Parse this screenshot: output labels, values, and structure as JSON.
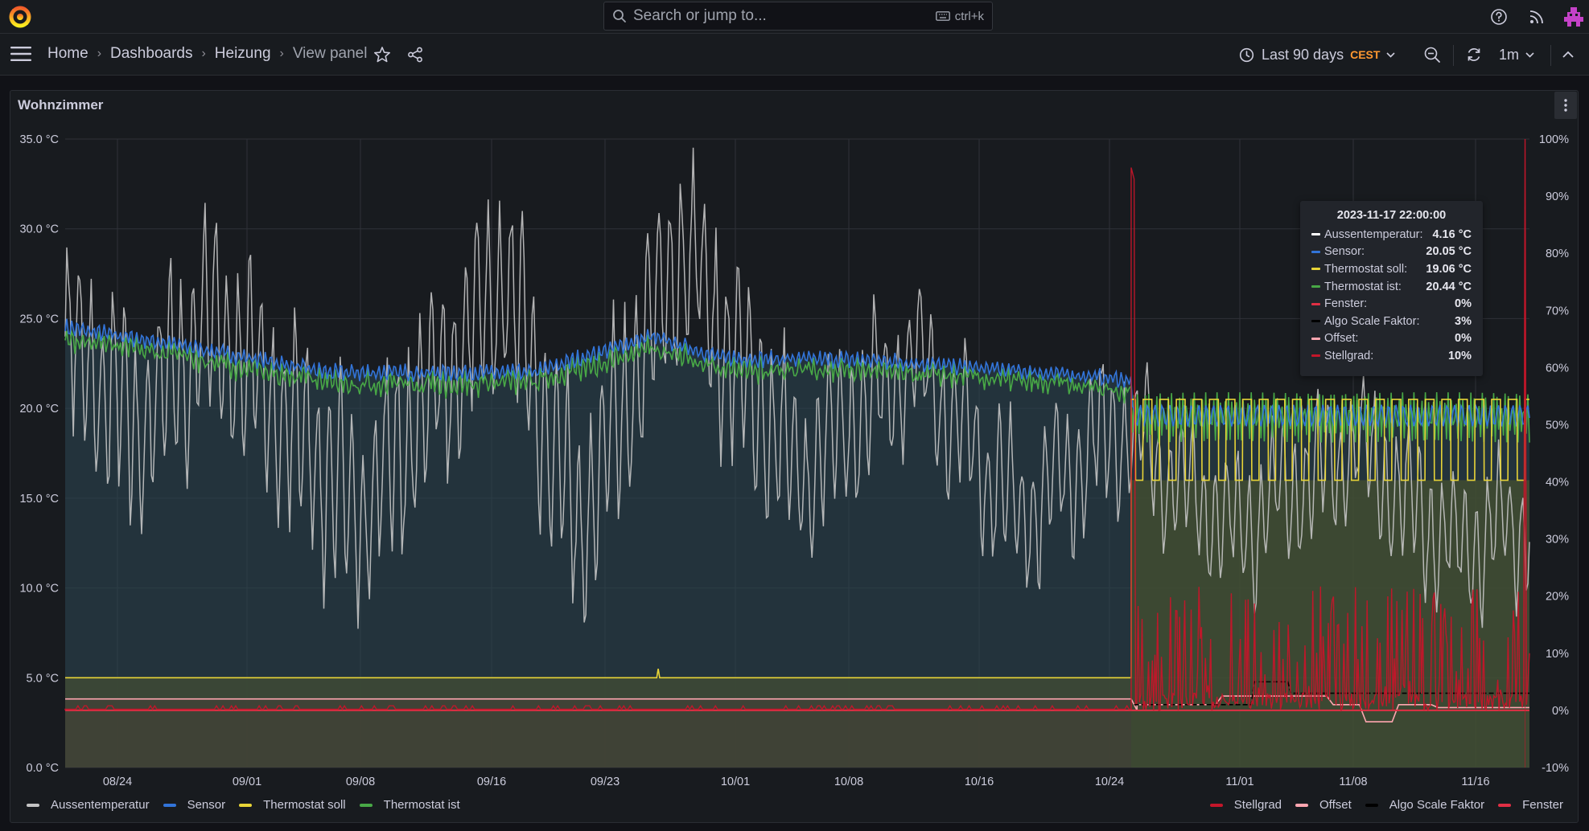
{
  "search": {
    "placeholder": "Search or jump to...",
    "shortcut": "ctrl+k"
  },
  "breadcrumbs": [
    {
      "label": "Home"
    },
    {
      "label": "Dashboards"
    },
    {
      "label": "Heizung"
    },
    {
      "label": "View panel"
    }
  ],
  "time_picker": {
    "range": "Last 90 days",
    "timezone": "CEST"
  },
  "refresh": {
    "interval": "1m"
  },
  "panel": {
    "title": "Wohnzimmer"
  },
  "colors": {
    "aussen": "#c4c4c4",
    "sensor": "#3274d9",
    "soll": "#e8d437",
    "ist": "#48a846",
    "stellgrad": "#c4162a",
    "offset": "#ffa6b0",
    "algo": "#000000",
    "fenster": "#e02f44",
    "accent": "#ff9830"
  },
  "chart_data": {
    "type": "line",
    "x_ticks": [
      "08/24",
      "09/01",
      "09/08",
      "09/16",
      "09/23",
      "10/01",
      "10/08",
      "10/16",
      "10/24",
      "11/01",
      "11/08",
      "11/16"
    ],
    "y_left_ticks": [
      "35.0 °C",
      "30.0 °C",
      "25.0 °C",
      "20.0 °C",
      "15.0 °C",
      "10.0 °C",
      "5.0 °C",
      "0.0 °C"
    ],
    "y_right_ticks": [
      "100%",
      "90%",
      "80%",
      "70%",
      "60%",
      "50%",
      "40%",
      "30%",
      "20%",
      "10%",
      "0%",
      "-10%"
    ],
    "ylim_left": [
      0,
      35
    ],
    "ylim_right": [
      -10,
      100
    ],
    "grid": true,
    "legend_left": [
      "Aussentemperatur",
      "Sensor",
      "Thermostat soll",
      "Thermostat ist"
    ],
    "legend_right": [
      "Stellgrad",
      "Offset",
      "Algo Scale Faktor",
      "Fenster"
    ],
    "series": [
      {
        "name": "Aussentemperatur",
        "axis": "left",
        "values": [
          [
            0,
            24
          ],
          [
            0.05,
            19
          ],
          [
            0.1,
            25
          ],
          [
            0.2,
            14
          ],
          [
            0.3,
            27
          ],
          [
            0.35,
            13
          ],
          [
            0.42,
            29
          ],
          [
            0.5,
            16
          ],
          [
            0.58,
            23
          ],
          [
            0.65,
            14
          ],
          [
            0.72,
            19
          ],
          [
            0.8,
            13
          ],
          [
            0.88,
            18
          ],
          [
            0.95,
            12
          ],
          [
            1,
            14
          ]
        ]
      },
      {
        "name": "Sensor",
        "axis": "left",
        "values": [
          [
            0,
            24.5
          ],
          [
            0.08,
            23.5
          ],
          [
            0.18,
            22
          ],
          [
            0.32,
            22
          ],
          [
            0.4,
            24
          ],
          [
            0.45,
            22.8
          ],
          [
            0.55,
            22.7
          ],
          [
            0.7,
            21.8
          ],
          [
            0.85,
            20.5
          ],
          [
            0.88,
            20
          ],
          [
            1,
            19.5
          ]
        ]
      },
      {
        "name": "Thermostat soll",
        "axis": "left",
        "values": [
          [
            0,
            5
          ],
          [
            0.727,
            5
          ],
          [
            0.73,
            20.5
          ],
          [
            0.745,
            16
          ],
          [
            1,
            16
          ]
        ]
      },
      {
        "name": "Thermostat ist",
        "axis": "left",
        "values": [
          [
            0,
            24
          ],
          [
            0.08,
            23
          ],
          [
            0.18,
            21.5
          ],
          [
            0.32,
            21.5
          ],
          [
            0.4,
            23.6
          ],
          [
            0.45,
            22.4
          ],
          [
            0.55,
            22.2
          ],
          [
            0.7,
            21.2
          ],
          [
            0.85,
            19.5
          ],
          [
            0.88,
            19
          ],
          [
            0.73,
            20
          ],
          [
            1,
            19.5
          ]
        ]
      },
      {
        "name": "Stellgrad",
        "axis": "right",
        "values": [
          [
            0,
            0
          ],
          [
            0.726,
            0
          ],
          [
            0.728,
            96
          ],
          [
            0.73,
            2
          ],
          [
            0.78,
            10
          ],
          [
            0.85,
            5
          ],
          [
            0.9,
            8
          ],
          [
            0.997,
            3
          ],
          [
            0.998,
            100
          ],
          [
            1,
            3
          ]
        ]
      },
      {
        "name": "Offset",
        "axis": "right",
        "values": [
          [
            0,
            2
          ],
          [
            0.74,
            0
          ],
          [
            0.85,
            2
          ],
          [
            1,
            2
          ]
        ]
      },
      {
        "name": "Algo Scale Faktor",
        "axis": "right",
        "values": [
          [
            0,
            0
          ],
          [
            0.76,
            1
          ],
          [
            0.82,
            3
          ],
          [
            0.86,
            5
          ],
          [
            0.9,
            3
          ],
          [
            1,
            3
          ]
        ]
      },
      {
        "name": "Fenster",
        "axis": "right",
        "values": [
          [
            0,
            0
          ],
          [
            1,
            0
          ]
        ]
      }
    ]
  },
  "tooltip": {
    "time": "2023-11-17 22:00:00",
    "rows": [
      {
        "label": "Aussentemperatur:",
        "value": "4.16 °C",
        "color": "#ffffff"
      },
      {
        "label": "Sensor:",
        "value": "20.05 °C",
        "color": "#3274d9"
      },
      {
        "label": "Thermostat soll:",
        "value": "19.06 °C",
        "color": "#e8d437"
      },
      {
        "label": "Thermostat ist:",
        "value": "20.44 °C",
        "color": "#48a846"
      },
      {
        "label": "Fenster:",
        "value": "0%",
        "color": "#e02f44"
      },
      {
        "label": "Algo Scale Faktor:",
        "value": "3%",
        "color": "#000000"
      },
      {
        "label": "Offset:",
        "value": "0%",
        "color": "#ffa6b0"
      },
      {
        "label": "Stellgrad:",
        "value": "10%",
        "color": "#c4162a"
      }
    ]
  },
  "legend": {
    "left": [
      {
        "label": "Aussentemperatur",
        "color": "#c4c4c4"
      },
      {
        "label": "Sensor",
        "color": "#3274d9"
      },
      {
        "label": "Thermostat soll",
        "color": "#e8d437"
      },
      {
        "label": "Thermostat ist",
        "color": "#48a846"
      }
    ],
    "right": [
      {
        "label": "Stellgrad",
        "color": "#c4162a"
      },
      {
        "label": "Offset",
        "color": "#ffa6b0"
      },
      {
        "label": "Algo Scale Faktor",
        "color": "#000000"
      },
      {
        "label": "Fenster",
        "color": "#e02f44"
      }
    ]
  }
}
